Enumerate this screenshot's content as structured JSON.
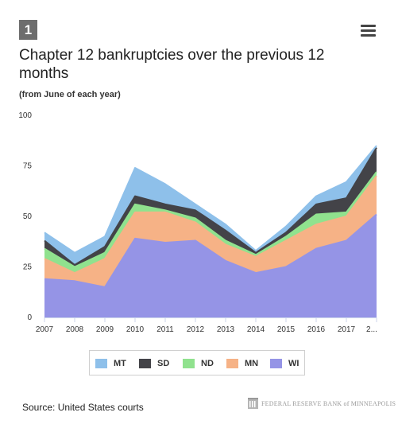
{
  "badge": "1",
  "menu_icon": "hamburger-icon",
  "source": "Source: United States courts",
  "logo_text": "FEDERAL RESERVE BANK of MINNEAPOLIS",
  "chart_data": {
    "type": "area",
    "stacked": true,
    "title": "Chapter 12 bankruptcies over the previous 12 months",
    "subtitle": "(from June of each year)",
    "categories": [
      "2007",
      "2008",
      "2009",
      "2010",
      "2011",
      "2012",
      "2013",
      "2014",
      "2015",
      "2016",
      "2017",
      "2..."
    ],
    "ylim": [
      0,
      100
    ],
    "yticks": [
      0,
      25,
      50,
      75,
      100
    ],
    "grid": false,
    "legend_position": "bottom",
    "series": [
      {
        "name": "WI",
        "color": "#9594e6",
        "values": [
          19,
          18,
          15,
          39,
          37,
          38,
          28,
          22,
          25,
          34,
          38,
          51
        ]
      },
      {
        "name": "MN",
        "color": "#f6b286",
        "values": [
          10,
          4,
          14,
          13,
          15,
          9,
          8,
          8,
          13,
          12,
          12,
          19
        ]
      },
      {
        "name": "ND",
        "color": "#90e28e",
        "values": [
          5,
          3,
          3,
          4,
          1,
          2,
          2,
          1,
          2,
          5,
          2,
          2
        ]
      },
      {
        "name": "SD",
        "color": "#434348",
        "values": [
          4,
          1,
          3,
          4,
          3,
          4,
          5,
          1,
          2,
          5,
          7,
          12
        ]
      },
      {
        "name": "MT",
        "color": "#8ec0ea",
        "values": [
          4,
          6,
          5,
          14,
          10,
          3,
          3,
          1,
          3,
          4,
          8,
          1
        ]
      }
    ],
    "legend": [
      "MT",
      "SD",
      "ND",
      "MN",
      "WI"
    ]
  }
}
